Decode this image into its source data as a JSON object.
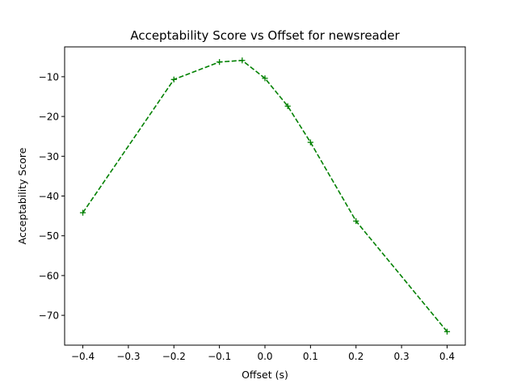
{
  "chart_data": {
    "type": "line",
    "title": "Acceptability Score vs Offset for newsreader",
    "xlabel": "Offset (s)",
    "ylabel": "Acceptability Score",
    "xlim": [
      -0.44,
      0.44
    ],
    "ylim": [
      -77.5,
      -2.5
    ],
    "xticks": [
      -0.4,
      -0.3,
      -0.2,
      -0.1,
      0.0,
      0.1,
      0.2,
      0.3,
      0.4
    ],
    "xtick_labels": [
      "−0.4",
      "−0.3",
      "−0.2",
      "−0.1",
      "0.0",
      "0.1",
      "0.2",
      "0.3",
      "0.4"
    ],
    "yticks": [
      -10,
      -20,
      -30,
      -40,
      -50,
      -60,
      -70
    ],
    "ytick_labels": [
      "−10",
      "−20",
      "−30",
      "−40",
      "−50",
      "−60",
      "−70"
    ],
    "grid": false,
    "series": [
      {
        "color": "#008000",
        "line_style": "dashed",
        "marker": "plus",
        "x": [
          -0.4,
          -0.2,
          -0.1,
          -0.05,
          0.0,
          0.05,
          0.1,
          0.2,
          0.4
        ],
        "y": [
          -44.2,
          -10.7,
          -6.3,
          -5.9,
          -10.4,
          -17.4,
          -26.5,
          -46.3,
          -74.1
        ]
      }
    ]
  }
}
